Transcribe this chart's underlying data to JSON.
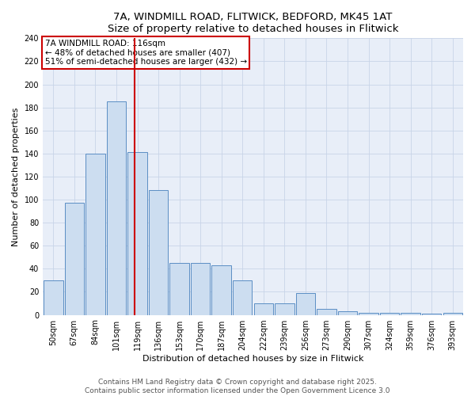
{
  "title": "7A, WINDMILL ROAD, FLITWICK, BEDFORD, MK45 1AT",
  "subtitle": "Size of property relative to detached houses in Flitwick",
  "xlabel": "Distribution of detached houses by size in Flitwick",
  "ylabel": "Number of detached properties",
  "bar_labels": [
    "50sqm",
    "67sqm",
    "84sqm",
    "101sqm",
    "119sqm",
    "136sqm",
    "153sqm",
    "170sqm",
    "187sqm",
    "204sqm",
    "222sqm",
    "239sqm",
    "256sqm",
    "273sqm",
    "290sqm",
    "307sqm",
    "324sqm",
    "359sqm",
    "376sqm",
    "393sqm"
  ],
  "bar_heights": [
    30,
    97,
    140,
    185,
    141,
    108,
    45,
    45,
    43,
    30,
    10,
    10,
    19,
    5,
    3,
    2,
    2,
    2,
    1,
    2
  ],
  "bar_color": "#ccddf0",
  "bar_edgecolor": "#5b8ec4",
  "vline_x": 3.85,
  "vline_color": "#cc0000",
  "annotation_text": "7A WINDMILL ROAD: 116sqm\n← 48% of detached houses are smaller (407)\n51% of semi-detached houses are larger (432) →",
  "annotation_box_edgecolor": "#cc0000",
  "ylim": [
    0,
    240
  ],
  "yticks": [
    0,
    20,
    40,
    60,
    80,
    100,
    120,
    140,
    160,
    180,
    200,
    220,
    240
  ],
  "footer1": "Contains HM Land Registry data © Crown copyright and database right 2025.",
  "footer2": "Contains public sector information licensed under the Open Government Licence 3.0",
  "title_fontsize": 9.5,
  "label_fontsize": 8,
  "tick_fontsize": 7,
  "footer_fontsize": 6.5,
  "bg_color": "#e8eef8"
}
